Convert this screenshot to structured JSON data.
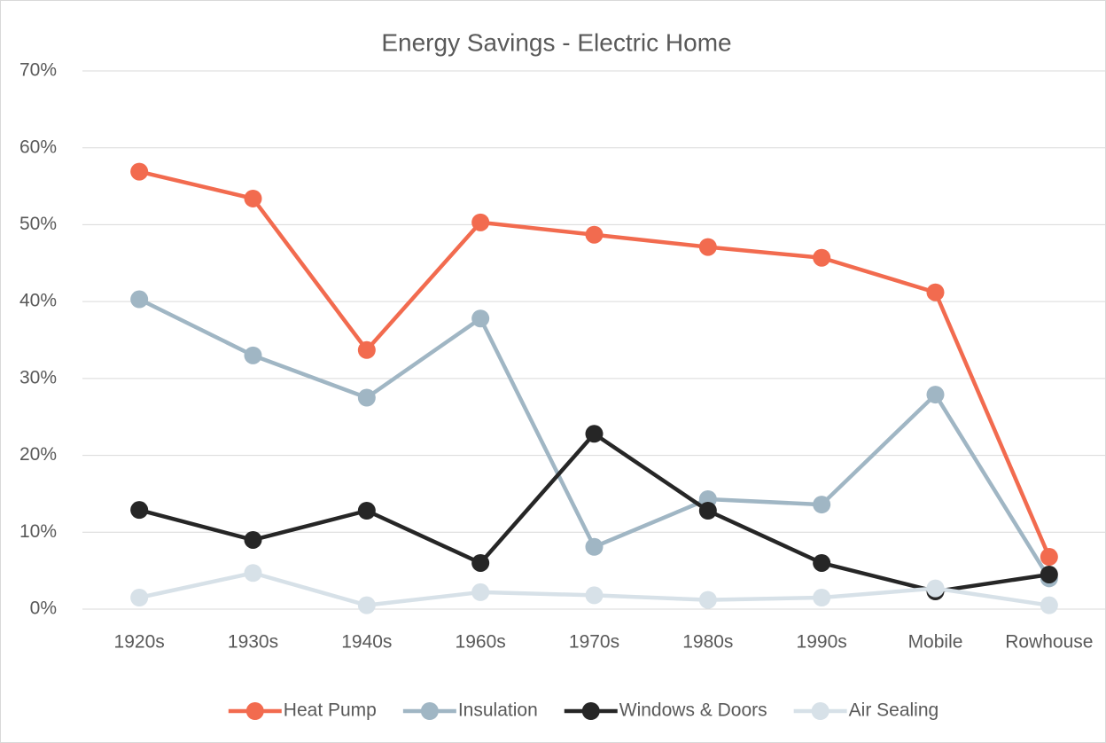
{
  "chart_data": {
    "type": "line",
    "title": "Energy Savings - Electric Home",
    "categories": [
      "1920s",
      "1930s",
      "1940s",
      "1960s",
      "1970s",
      "1980s",
      "1990s",
      "Mobile",
      "Rowhouse"
    ],
    "series": [
      {
        "name": "Heat Pump",
        "color": "#f26b4f",
        "values": [
          56.9,
          53.4,
          33.7,
          50.3,
          48.7,
          47.1,
          45.7,
          41.2,
          6.8
        ]
      },
      {
        "name": "Insulation",
        "color": "#a0b6c4",
        "values": [
          40.3,
          33.0,
          27.5,
          37.8,
          8.1,
          14.3,
          13.6,
          27.9,
          4.0
        ]
      },
      {
        "name": "Windows & Doors",
        "color": "#262626",
        "values": [
          12.9,
          9.0,
          12.8,
          6.0,
          22.8,
          12.8,
          6.0,
          2.3,
          4.5
        ]
      },
      {
        "name": "Air Sealing",
        "color": "#d7e1e8",
        "values": [
          1.5,
          4.7,
          0.5,
          2.2,
          1.8,
          1.2,
          1.5,
          2.7,
          0.5
        ]
      }
    ],
    "ylim": [
      0,
      70
    ],
    "yticks": [
      {
        "value": 0,
        "label": "0%"
      },
      {
        "value": 10,
        "label": "10%"
      },
      {
        "value": 20,
        "label": "20%"
      },
      {
        "value": 30,
        "label": "30%"
      },
      {
        "value": 40,
        "label": "40%"
      },
      {
        "value": 50,
        "label": "50%"
      },
      {
        "value": 60,
        "label": "60%"
      },
      {
        "value": 70,
        "label": "70%"
      }
    ],
    "grid": true,
    "legend": "bottom"
  }
}
